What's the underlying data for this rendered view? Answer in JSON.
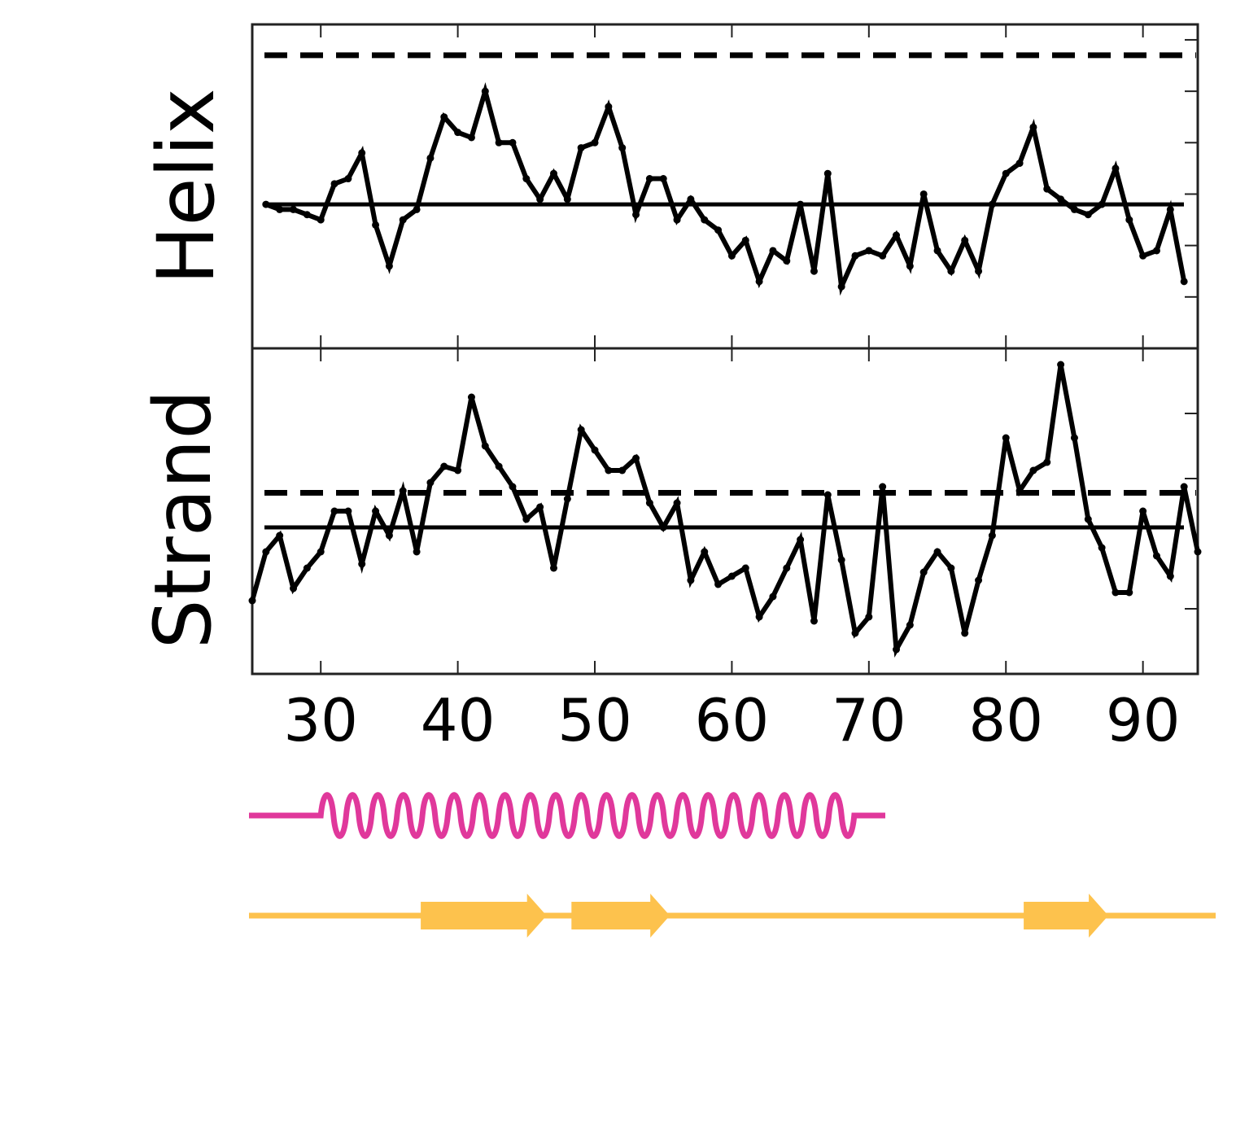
{
  "chart_data": [
    {
      "type": "line",
      "ylabel": "Helix",
      "x": [
        26,
        27,
        28,
        29,
        30,
        31,
        32,
        33,
        34,
        35,
        36,
        37,
        38,
        39,
        40,
        41,
        42,
        43,
        44,
        45,
        46,
        47,
        48,
        49,
        50,
        51,
        52,
        53,
        54,
        55,
        56,
        57,
        58,
        59,
        60,
        61,
        62,
        63,
        64,
        65,
        66,
        67,
        68,
        69,
        70,
        71,
        72,
        73,
        74,
        75,
        76,
        77,
        78,
        79,
        80,
        81,
        82,
        83,
        84,
        85,
        86,
        87,
        88,
        89,
        90,
        91,
        92,
        93
      ],
      "values": [
        0.0,
        -0.1,
        -0.1,
        -0.2,
        -0.3,
        0.4,
        0.5,
        1.0,
        -0.4,
        -1.2,
        -0.3,
        -0.1,
        0.9,
        1.7,
        1.4,
        1.3,
        2.2,
        1.2,
        1.2,
        0.5,
        0.1,
        0.6,
        0.1,
        1.1,
        1.2,
        1.9,
        1.1,
        -0.2,
        0.5,
        0.5,
        -0.3,
        0.1,
        -0.3,
        -0.5,
        -1.0,
        -0.7,
        -1.5,
        -0.9,
        -1.1,
        0.0,
        -1.3,
        0.6,
        -1.6,
        -1.0,
        -0.9,
        -1.0,
        -0.6,
        -1.2,
        0.2,
        -0.9,
        -1.3,
        -0.7,
        -1.3,
        0.0,
        0.6,
        0.8,
        1.5,
        0.3,
        0.1,
        -0.1,
        -0.2,
        0.0,
        0.7,
        -0.3,
        -1.0,
        -0.9,
        -0.1,
        -1.5
      ],
      "mean": 0.0,
      "threshold": 2.9,
      "xlim": [
        25,
        94
      ],
      "ylim": [
        -2.8,
        3.5
      ],
      "yticks": [
        -1.8,
        -0.8,
        0.2,
        1.2,
        2.2,
        3.2
      ]
    },
    {
      "type": "line",
      "ylabel": "Strand",
      "x": [
        25,
        26,
        27,
        28,
        29,
        30,
        31,
        32,
        33,
        34,
        35,
        36,
        37,
        38,
        39,
        40,
        41,
        42,
        43,
        44,
        45,
        46,
        47,
        48,
        49,
        50,
        51,
        52,
        53,
        54,
        55,
        56,
        57,
        58,
        59,
        60,
        61,
        62,
        63,
        64,
        65,
        66,
        67,
        68,
        69,
        70,
        71,
        72,
        73,
        74,
        75,
        76,
        77,
        78,
        79,
        80,
        81,
        82,
        83,
        84,
        85,
        86,
        87,
        88,
        89,
        90,
        91,
        92,
        93,
        94
      ],
      "values": [
        -1.8,
        -0.6,
        -0.2,
        -1.5,
        -1.0,
        -0.6,
        0.4,
        0.4,
        -0.9,
        0.4,
        -0.2,
        0.9,
        -0.6,
        1.1,
        1.5,
        1.4,
        3.2,
        2.0,
        1.5,
        1.0,
        0.2,
        0.5,
        -1.0,
        0.7,
        2.4,
        1.9,
        1.4,
        1.4,
        1.7,
        0.6,
        0.0,
        0.6,
        -1.3,
        -0.6,
        -1.4,
        -1.2,
        -1.0,
        -2.2,
        -1.7,
        -1.0,
        -0.3,
        -2.3,
        0.8,
        -0.8,
        -2.6,
        -2.2,
        1.0,
        -3.0,
        -2.4,
        -1.1,
        -0.6,
        -1.0,
        -2.6,
        -1.3,
        -0.2,
        2.2,
        0.9,
        1.4,
        1.6,
        4.0,
        2.2,
        0.2,
        -0.5,
        -1.6,
        -1.6,
        0.4,
        -0.7,
        -1.2,
        1.0,
        -0.6
      ],
      "mean": 0.0,
      "threshold": 0.85,
      "xlim": [
        25,
        94
      ],
      "ylim": [
        -3.6,
        4.4
      ],
      "yticks": [
        -2.0,
        1.2,
        2.8
      ]
    }
  ],
  "axis": {
    "xticks": [
      "30",
      "40",
      "50",
      "60",
      "70",
      "80",
      "90"
    ],
    "xtick_values": [
      30,
      40,
      50,
      60,
      70,
      80,
      90
    ]
  },
  "tracks": {
    "helix_color": "#e0389b",
    "strand_color": "#fdc24d",
    "helix_segments": [
      [
        30,
        70
      ]
    ],
    "strand_segments": [
      [
        37,
        46
      ],
      [
        48,
        55
      ],
      [
        81,
        87
      ]
    ]
  }
}
